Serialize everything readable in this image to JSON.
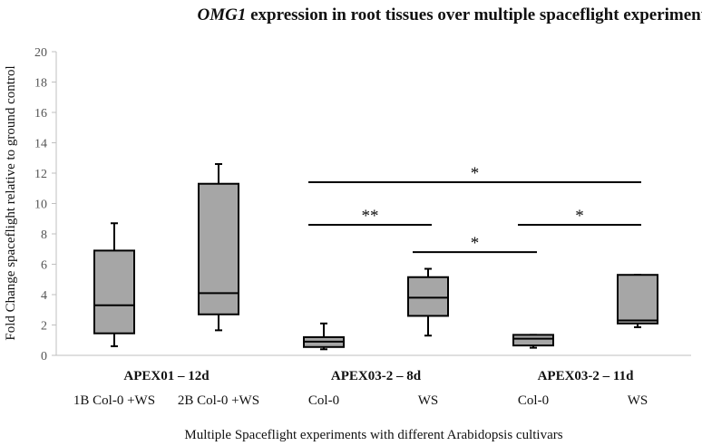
{
  "chart_data": {
    "type": "box",
    "title_italic": "OMG1",
    "title_rest": " expression in root tissues over multiple spaceflight experiments",
    "ylabel": "Fold Change spaceflight relative to ground control",
    "xlabel": "Multiple Spaceflight experiments with different Arabidopsis cultivars",
    "ylim": [
      0,
      20
    ],
    "yticks": [
      0,
      2,
      4,
      6,
      8,
      10,
      12,
      14,
      16,
      18,
      20
    ],
    "grid": false,
    "boxes": [
      {
        "label": "1B Col-0 +WS",
        "min": 0.6,
        "q1": 1.45,
        "median": 3.3,
        "q3": 6.9,
        "max": 8.7
      },
      {
        "label": "2B Col-0 +WS",
        "min": 1.65,
        "q1": 2.7,
        "median": 4.1,
        "q3": 11.3,
        "max": 12.6
      },
      {
        "label": "Col-0",
        "min": 0.4,
        "q1": 0.55,
        "median": 0.9,
        "q3": 1.2,
        "max": 2.1
      },
      {
        "label": "WS",
        "min": 1.3,
        "q1": 2.6,
        "median": 3.8,
        "q3": 5.15,
        "max": 5.7
      },
      {
        "label": "Col-0",
        "min": 0.5,
        "q1": 0.65,
        "median": 1.1,
        "q3": 1.35,
        "max": 1.35
      },
      {
        "label": "WS",
        "min": 1.85,
        "q1": 2.1,
        "median": 2.3,
        "q3": 5.3,
        "max": 5.3
      }
    ],
    "groups": [
      {
        "label": "APEX01 – 12d",
        "boxes": [
          0,
          1
        ]
      },
      {
        "label": "APEX03-2 – 8d",
        "boxes": [
          2,
          3
        ]
      },
      {
        "label": "APEX03-2 – 11d",
        "boxes": [
          4,
          5
        ]
      }
    ],
    "significance": [
      {
        "from": 2,
        "to": 5,
        "y": 11.4,
        "label": "*"
      },
      {
        "from": 2,
        "to": 3,
        "y": 8.6,
        "label": "**"
      },
      {
        "from": 3,
        "to": 4,
        "y": 6.8,
        "label": "*"
      },
      {
        "from": 4,
        "to": 5,
        "y": 8.6,
        "label": "*"
      }
    ],
    "colors": {
      "box_fill": "#a6a6a6",
      "stroke": "#000000",
      "axis": "#bfbfbf"
    }
  }
}
